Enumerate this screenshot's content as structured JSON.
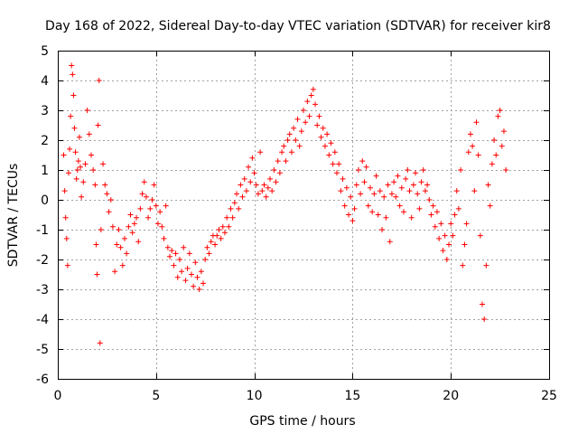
{
  "chart_data": {
    "type": "scatter",
    "title": "Day 168 of 2022, Sidereal Day-to-day VTEC variation (SDTVAR) for receiver kir8",
    "xlabel": "GPS time / hours",
    "ylabel": "SDTVAR / TECUs",
    "xlim": [
      0,
      25
    ],
    "ylim": [
      -6,
      5
    ],
    "xticks": [
      "0",
      "5",
      "10",
      "15",
      "20",
      "25"
    ],
    "yticks": [
      "-6",
      "-5",
      "-4",
      "-3",
      "-2",
      "-1",
      "0",
      "1",
      "2",
      "3",
      "4",
      "5"
    ],
    "grid": true,
    "marker": "+",
    "color": "#ff0000",
    "series": [
      {
        "name": "SDTVAR",
        "points": [
          [
            0.3,
            1.5
          ],
          [
            0.35,
            0.3
          ],
          [
            0.4,
            -0.6
          ],
          [
            0.45,
            -1.3
          ],
          [
            0.5,
            -2.2
          ],
          [
            0.55,
            0.9
          ],
          [
            0.6,
            1.7
          ],
          [
            0.65,
            2.8
          ],
          [
            0.7,
            4.5
          ],
          [
            0.75,
            4.2
          ],
          [
            0.8,
            3.5
          ],
          [
            0.85,
            2.4
          ],
          [
            0.9,
            1.6
          ],
          [
            0.95,
            0.7
          ],
          [
            1.0,
            1.0
          ],
          [
            1.05,
            1.3
          ],
          [
            1.1,
            2.1
          ],
          [
            1.15,
            1.1
          ],
          [
            1.2,
            0.1
          ],
          [
            1.3,
            0.6
          ],
          [
            1.4,
            1.2
          ],
          [
            1.5,
            3.0
          ],
          [
            1.6,
            2.2
          ],
          [
            1.7,
            1.5
          ],
          [
            1.8,
            1.0
          ],
          [
            1.9,
            0.5
          ],
          [
            1.95,
            -1.5
          ],
          [
            2.0,
            -2.5
          ],
          [
            2.05,
            2.5
          ],
          [
            2.1,
            4.0
          ],
          [
            2.15,
            -4.8
          ],
          [
            2.2,
            -1.0
          ],
          [
            2.3,
            1.2
          ],
          [
            2.4,
            0.5
          ],
          [
            2.5,
            0.2
          ],
          [
            2.6,
            -0.4
          ],
          [
            2.7,
            0.0
          ],
          [
            2.8,
            -0.9
          ],
          [
            2.9,
            -2.4
          ],
          [
            3.0,
            -1.5
          ],
          [
            3.1,
            -1.0
          ],
          [
            3.2,
            -1.6
          ],
          [
            3.3,
            -2.2
          ],
          [
            3.4,
            -1.3
          ],
          [
            3.5,
            -1.8
          ],
          [
            3.6,
            -0.9
          ],
          [
            3.7,
            -0.5
          ],
          [
            3.8,
            -1.1
          ],
          [
            3.9,
            -0.8
          ],
          [
            4.0,
            -0.6
          ],
          [
            4.1,
            -1.4
          ],
          [
            4.2,
            -0.3
          ],
          [
            4.3,
            0.2
          ],
          [
            4.4,
            0.6
          ],
          [
            4.5,
            0.1
          ],
          [
            4.6,
            -0.6
          ],
          [
            4.7,
            -0.3
          ],
          [
            4.8,
            0.0
          ],
          [
            4.9,
            0.5
          ],
          [
            5.0,
            -0.2
          ],
          [
            5.1,
            -0.8
          ],
          [
            5.2,
            -0.4
          ],
          [
            5.3,
            -0.9
          ],
          [
            5.4,
            -1.3
          ],
          [
            5.5,
            -0.2
          ],
          [
            5.6,
            -1.6
          ],
          [
            5.7,
            -1.9
          ],
          [
            5.8,
            -1.7
          ],
          [
            5.9,
            -2.2
          ],
          [
            6.0,
            -1.8
          ],
          [
            6.1,
            -2.6
          ],
          [
            6.2,
            -2.0
          ],
          [
            6.3,
            -2.4
          ],
          [
            6.4,
            -1.6
          ],
          [
            6.5,
            -2.7
          ],
          [
            6.6,
            -2.3
          ],
          [
            6.7,
            -1.8
          ],
          [
            6.8,
            -2.5
          ],
          [
            6.9,
            -2.9
          ],
          [
            7.0,
            -2.1
          ],
          [
            7.1,
            -2.6
          ],
          [
            7.2,
            -3.0
          ],
          [
            7.3,
            -2.4
          ],
          [
            7.4,
            -2.8
          ],
          [
            7.5,
            -2.0
          ],
          [
            7.6,
            -1.6
          ],
          [
            7.7,
            -1.8
          ],
          [
            7.8,
            -1.4
          ],
          [
            7.9,
            -1.2
          ],
          [
            8.0,
            -1.5
          ],
          [
            8.1,
            -1.2
          ],
          [
            8.2,
            -1.0
          ],
          [
            8.3,
            -1.3
          ],
          [
            8.4,
            -0.9
          ],
          [
            8.5,
            -1.1
          ],
          [
            8.6,
            -0.6
          ],
          [
            8.7,
            -0.9
          ],
          [
            8.8,
            -0.3
          ],
          [
            8.9,
            -0.6
          ],
          [
            9.0,
            -0.1
          ],
          [
            9.1,
            0.2
          ],
          [
            9.2,
            -0.3
          ],
          [
            9.3,
            0.5
          ],
          [
            9.4,
            0.1
          ],
          [
            9.5,
            0.7
          ],
          [
            9.6,
            0.3
          ],
          [
            9.7,
            1.1
          ],
          [
            9.8,
            0.6
          ],
          [
            9.9,
            1.4
          ],
          [
            10.0,
            0.9
          ],
          [
            10.1,
            0.5
          ],
          [
            10.2,
            0.2
          ],
          [
            10.3,
            1.6
          ],
          [
            10.4,
            0.3
          ],
          [
            10.5,
            0.5
          ],
          [
            10.6,
            0.1
          ],
          [
            10.7,
            0.4
          ],
          [
            10.8,
            0.7
          ],
          [
            10.9,
            0.3
          ],
          [
            11.0,
            1.0
          ],
          [
            11.1,
            0.6
          ],
          [
            11.2,
            1.3
          ],
          [
            11.3,
            0.9
          ],
          [
            11.4,
            1.6
          ],
          [
            11.5,
            1.8
          ],
          [
            11.6,
            1.3
          ],
          [
            11.7,
            2.0
          ],
          [
            11.8,
            2.2
          ],
          [
            11.9,
            1.6
          ],
          [
            12.0,
            2.4
          ],
          [
            12.1,
            2.0
          ],
          [
            12.2,
            2.7
          ],
          [
            12.3,
            1.8
          ],
          [
            12.4,
            2.3
          ],
          [
            12.5,
            3.0
          ],
          [
            12.6,
            2.6
          ],
          [
            12.7,
            3.3
          ],
          [
            12.8,
            2.8
          ],
          [
            12.9,
            3.5
          ],
          [
            13.0,
            3.7
          ],
          [
            13.1,
            3.2
          ],
          [
            13.2,
            2.5
          ],
          [
            13.3,
            2.8
          ],
          [
            13.4,
            2.1
          ],
          [
            13.5,
            2.4
          ],
          [
            13.6,
            1.8
          ],
          [
            13.7,
            2.2
          ],
          [
            13.8,
            1.5
          ],
          [
            13.9,
            1.9
          ],
          [
            14.0,
            1.2
          ],
          [
            14.1,
            1.6
          ],
          [
            14.2,
            0.9
          ],
          [
            14.3,
            1.2
          ],
          [
            14.4,
            0.3
          ],
          [
            14.5,
            0.7
          ],
          [
            14.6,
            -0.2
          ],
          [
            14.7,
            0.4
          ],
          [
            14.8,
            -0.5
          ],
          [
            14.9,
            0.1
          ],
          [
            15.0,
            -0.7
          ],
          [
            15.1,
            -0.3
          ],
          [
            15.2,
            0.5
          ],
          [
            15.3,
            1.0
          ],
          [
            15.4,
            0.2
          ],
          [
            15.5,
            1.3
          ],
          [
            15.6,
            0.6
          ],
          [
            15.7,
            1.1
          ],
          [
            15.8,
            -0.2
          ],
          [
            15.9,
            0.4
          ],
          [
            16.0,
            -0.4
          ],
          [
            16.1,
            0.2
          ],
          [
            16.2,
            0.8
          ],
          [
            16.3,
            -0.5
          ],
          [
            16.4,
            0.3
          ],
          [
            16.5,
            -1.0
          ],
          [
            16.6,
            0.1
          ],
          [
            16.7,
            -0.6
          ],
          [
            16.8,
            0.5
          ],
          [
            16.9,
            -1.4
          ],
          [
            17.0,
            0.2
          ],
          [
            17.1,
            0.6
          ],
          [
            17.2,
            0.1
          ],
          [
            17.3,
            0.8
          ],
          [
            17.4,
            -0.2
          ],
          [
            17.5,
            0.4
          ],
          [
            17.6,
            -0.4
          ],
          [
            17.7,
            0.7
          ],
          [
            17.8,
            1.0
          ],
          [
            17.9,
            0.3
          ],
          [
            18.0,
            -0.6
          ],
          [
            18.1,
            0.5
          ],
          [
            18.2,
            0.9
          ],
          [
            18.3,
            0.2
          ],
          [
            18.4,
            -0.3
          ],
          [
            18.5,
            0.6
          ],
          [
            18.6,
            1.0
          ],
          [
            18.7,
            0.3
          ],
          [
            18.8,
            0.5
          ],
          [
            18.9,
            0.0
          ],
          [
            19.0,
            -0.5
          ],
          [
            19.1,
            -0.2
          ],
          [
            19.2,
            -0.9
          ],
          [
            19.3,
            -0.4
          ],
          [
            19.4,
            -1.3
          ],
          [
            19.5,
            -0.8
          ],
          [
            19.6,
            -1.7
          ],
          [
            19.7,
            -1.2
          ],
          [
            19.8,
            -2.0
          ],
          [
            19.9,
            -1.5
          ],
          [
            20.0,
            -0.8
          ],
          [
            20.1,
            -1.2
          ],
          [
            20.2,
            -0.5
          ],
          [
            20.3,
            0.3
          ],
          [
            20.4,
            -0.3
          ],
          [
            20.5,
            1.0
          ],
          [
            20.6,
            -2.2
          ],
          [
            20.7,
            -1.5
          ],
          [
            20.8,
            -0.8
          ],
          [
            20.9,
            1.6
          ],
          [
            21.0,
            2.2
          ],
          [
            21.1,
            1.8
          ],
          [
            21.2,
            0.3
          ],
          [
            21.3,
            2.6
          ],
          [
            21.4,
            1.5
          ],
          [
            21.5,
            -1.2
          ],
          [
            21.6,
            -3.5
          ],
          [
            21.7,
            -4.0
          ],
          [
            21.8,
            -2.2
          ],
          [
            21.9,
            0.5
          ],
          [
            22.0,
            -0.2
          ],
          [
            22.1,
            1.2
          ],
          [
            22.2,
            2.0
          ],
          [
            22.3,
            1.5
          ],
          [
            22.4,
            2.8
          ],
          [
            22.5,
            3.0
          ],
          [
            22.6,
            1.8
          ],
          [
            22.7,
            2.3
          ],
          [
            22.8,
            1.0
          ]
        ]
      }
    ]
  }
}
